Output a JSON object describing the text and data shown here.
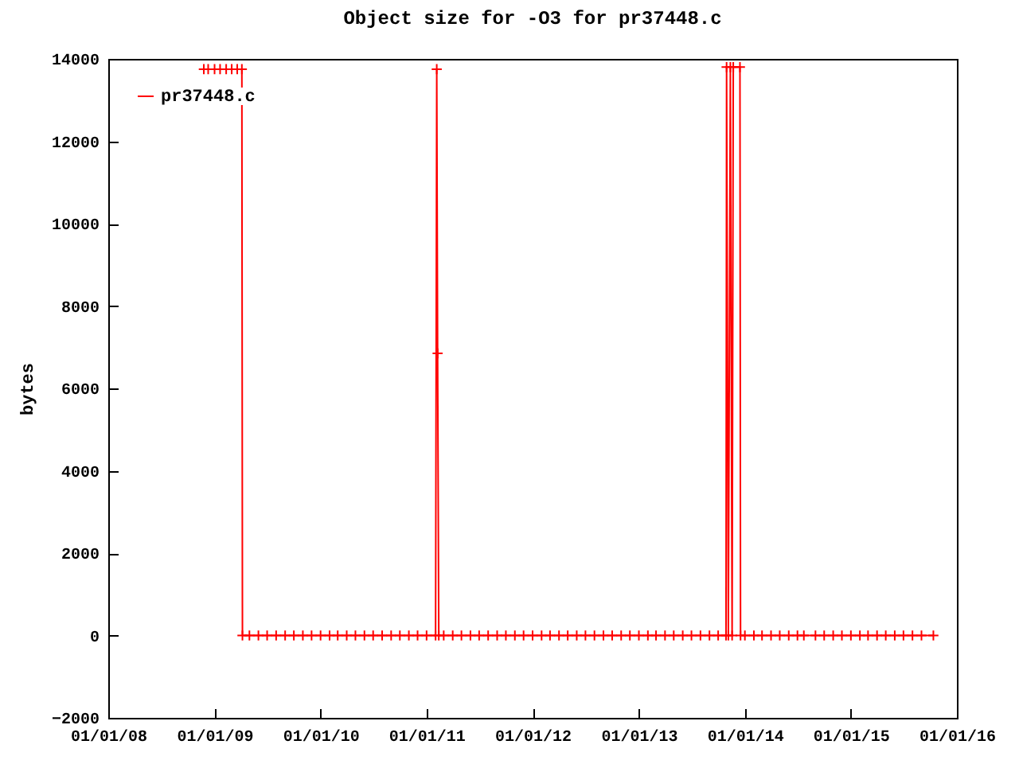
{
  "chart_data": {
    "type": "line",
    "title": "Object size for -O3 for pr37448.c",
    "ylabel": "bytes",
    "legend": "top left",
    "marker": "cross",
    "grid": false,
    "xlim": [
      "2008-01-01",
      "2016-01-01"
    ],
    "xticks": [
      {
        "value": "2008-01-01",
        "label": "01/01/08"
      },
      {
        "value": "2009-01-01",
        "label": "01/01/09"
      },
      {
        "value": "2010-01-01",
        "label": "01/01/10"
      },
      {
        "value": "2011-01-01",
        "label": "01/01/11"
      },
      {
        "value": "2012-01-01",
        "label": "01/01/12"
      },
      {
        "value": "2013-01-01",
        "label": "01/01/13"
      },
      {
        "value": "2014-01-01",
        "label": "01/01/14"
      },
      {
        "value": "2015-01-01",
        "label": "01/01/15"
      },
      {
        "value": "2016-01-01",
        "label": "01/01/16"
      }
    ],
    "ylim": [
      -2000,
      14000
    ],
    "yticks": [
      -2000,
      0,
      2000,
      4000,
      6000,
      8000,
      10000,
      12000,
      14000
    ],
    "series": [
      {
        "name": "pr37448.c",
        "color": "#ff0000",
        "x": [
          "2008-11-25",
          "2008-12-10",
          "2009-01-01",
          "2009-01-20",
          "2009-02-10",
          "2009-03-01",
          "2009-03-20",
          "2009-04-05",
          "2009-04-07",
          "2009-05-01",
          "2009-06-01",
          "2009-07-01",
          "2009-08-01",
          "2009-09-01",
          "2009-10-01",
          "2009-11-01",
          "2009-12-01",
          "2010-01-01",
          "2010-02-01",
          "2010-03-01",
          "2010-04-01",
          "2010-05-01",
          "2010-06-01",
          "2010-07-01",
          "2010-08-01",
          "2010-09-01",
          "2010-10-01",
          "2010-11-01",
          "2010-12-01",
          "2011-01-01",
          "2011-02-01",
          "2011-02-05",
          "2011-02-08",
          "2011-02-12",
          "2011-03-01",
          "2011-04-01",
          "2011-05-01",
          "2011-06-01",
          "2011-07-01",
          "2011-08-01",
          "2011-09-01",
          "2011-10-01",
          "2011-11-01",
          "2011-12-01",
          "2012-01-01",
          "2012-02-01",
          "2012-03-01",
          "2012-04-01",
          "2012-05-01",
          "2012-06-01",
          "2012-07-01",
          "2012-08-01",
          "2012-09-01",
          "2012-10-01",
          "2012-11-01",
          "2012-12-01",
          "2013-01-01",
          "2013-02-01",
          "2013-03-01",
          "2013-04-01",
          "2013-05-01",
          "2013-06-01",
          "2013-07-01",
          "2013-08-01",
          "2013-09-01",
          "2013-10-01",
          "2013-10-28",
          "2013-10-30",
          "2013-11-05",
          "2013-11-12",
          "2013-11-18",
          "2013-11-22",
          "2013-12-15",
          "2013-12-17",
          "2014-01-01",
          "2014-02-01",
          "2014-03-01",
          "2014-04-01",
          "2014-05-01",
          "2014-06-01",
          "2014-07-01",
          "2014-07-23",
          "2014-09-01",
          "2014-10-01",
          "2014-11-01",
          "2014-12-01",
          "2015-01-01",
          "2015-02-01",
          "2015-03-01",
          "2015-04-01",
          "2015-05-01",
          "2015-06-01",
          "2015-07-01",
          "2015-08-01",
          "2015-09-01",
          "2015-10-12"
        ],
        "values": [
          13750,
          13750,
          13750,
          13750,
          13750,
          13750,
          13750,
          13750,
          0,
          0,
          0,
          0,
          0,
          0,
          0,
          0,
          0,
          0,
          0,
          0,
          0,
          0,
          0,
          0,
          0,
          0,
          0,
          0,
          0,
          0,
          0,
          13750,
          6850,
          0,
          0,
          0,
          0,
          0,
          0,
          0,
          0,
          0,
          0,
          0,
          0,
          0,
          0,
          0,
          0,
          0,
          0,
          0,
          0,
          0,
          0,
          0,
          0,
          0,
          0,
          0,
          0,
          0,
          0,
          0,
          0,
          0,
          0,
          13800,
          0,
          13800,
          0,
          13800,
          13800,
          0,
          0,
          0,
          0,
          0,
          0,
          0,
          0,
          0,
          0,
          0,
          0,
          0,
          0,
          0,
          0,
          0,
          0,
          0,
          0,
          0,
          0,
          0
        ]
      }
    ]
  }
}
